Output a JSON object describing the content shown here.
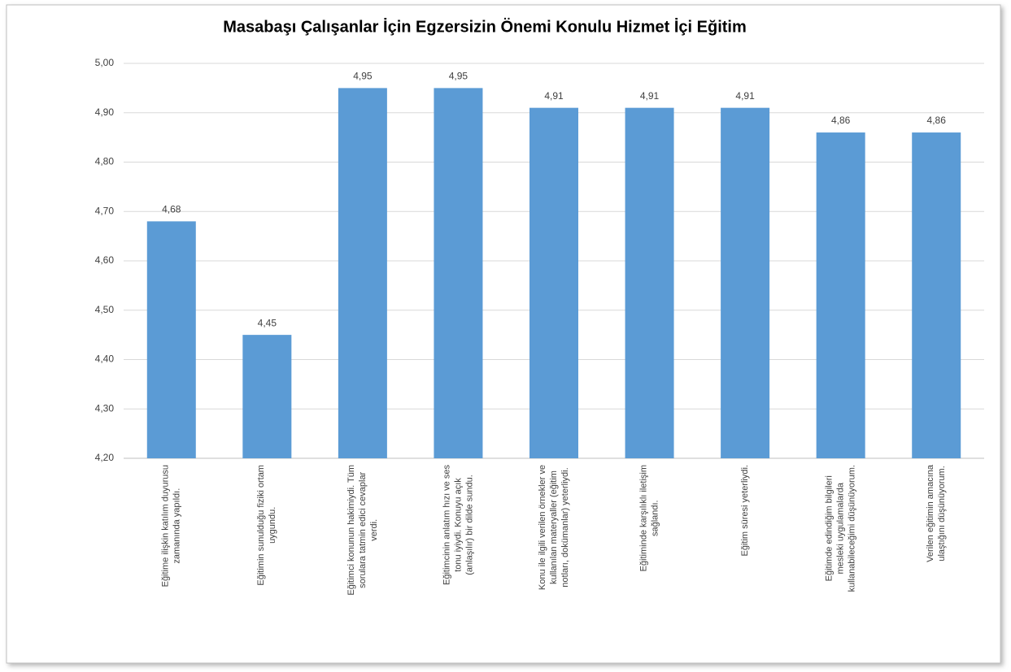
{
  "chart_data": {
    "type": "bar",
    "title": "Masabaşı Çalışanlar İçin Egzersizin Önemi Konulu Hizmet İçi Eğitim",
    "categories": [
      [
        "Eğitime ilişkin katılım duyurusu",
        "zamanında yapıldı."
      ],
      [
        "Eğitimin sunulduğu fiziki ortam",
        "uygundu."
      ],
      [
        "Eğitimci konunun hakimiydi. Tüm",
        "sorulara tatmin edici cevaplar",
        "verdi."
      ],
      [
        "Eğitimcinin anlatım hızı ve ses",
        "tonu iyiydi. Konuyu açık",
        "(anlaşılır) bir dilde sundu."
      ],
      [
        "Konu ile ilgili verilen örnekler ve",
        "kullanılan materyaller (eğitim",
        "notları, dokümanlar) yeterliydi."
      ],
      [
        "Eğitiminde karşılıklı iletişim",
        "sağlandı."
      ],
      [
        "Eğitim süresi yeterliydi."
      ],
      [
        "Eğitimde edindiğim bilgileri",
        "mesleki uygulamalarda",
        "kullanabileceğimi düşünüyorum."
      ],
      [
        "Verilen eğitimin amacına",
        "ulaştığını düşünüyorum."
      ]
    ],
    "values": [
      4.68,
      4.45,
      4.95,
      4.95,
      4.91,
      4.91,
      4.91,
      4.86,
      4.86
    ],
    "value_labels": [
      "4,68",
      "4,45",
      "4,95",
      "4,95",
      "4,91",
      "4,91",
      "4,91",
      "4,86",
      "4,86"
    ],
    "color": "#5b9bd5",
    "ylim": [
      4.2,
      5.0
    ],
    "yticks": [
      {
        "value": 4.2,
        "label": "4,20"
      },
      {
        "value": 4.3,
        "label": "4,30"
      },
      {
        "value": 4.4,
        "label": "4,40"
      },
      {
        "value": 4.5,
        "label": "4,50"
      },
      {
        "value": 4.6,
        "label": "4,60"
      },
      {
        "value": 4.7,
        "label": "4,70"
      },
      {
        "value": 4.8,
        "label": "4,80"
      },
      {
        "value": 4.9,
        "label": "4,90"
      },
      {
        "value": 5.0,
        "label": "5,00"
      }
    ],
    "grid": true
  }
}
